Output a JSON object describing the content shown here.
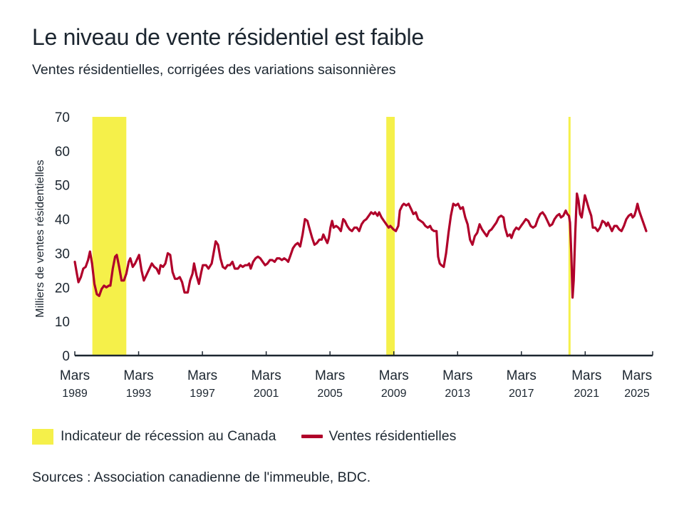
{
  "header": {
    "title": "Le niveau de vente résidentiel est faible",
    "subtitle": "Ventes résidentielles, corrigées des variations saisonnières"
  },
  "legend": {
    "recession_label": "Indicateur de récession au Canada",
    "series_label": "Ventes résidentielles"
  },
  "source": "Sources : Association canadienne de l'immeuble, BDC.",
  "colors": {
    "series": "#b0002a",
    "recession": "#f5f04a",
    "axis": "#1c2630"
  },
  "chart_data": {
    "type": "line",
    "title": "Le niveau de vente résidentiel est faible",
    "subtitle": "Ventes résidentielles, corrigées des variations saisonnières",
    "xlabel": "",
    "ylabel": "Milliers de ventes résidentielles",
    "ylim": [
      0,
      70
    ],
    "yticks": [
      0,
      10,
      20,
      30,
      40,
      50,
      60,
      70
    ],
    "xlim": [
      1989.17,
      2025.4
    ],
    "xticks": [
      {
        "x": 1989.17,
        "line1": "Mars",
        "line2": "1989"
      },
      {
        "x": 1993.17,
        "line1": "Mars",
        "line2": "1993"
      },
      {
        "x": 1997.17,
        "line1": "Mars",
        "line2": "1997"
      },
      {
        "x": 2001.17,
        "line1": "Mars",
        "line2": "2001"
      },
      {
        "x": 2005.17,
        "line1": "Mars",
        "line2": "2005"
      },
      {
        "x": 2009.17,
        "line1": "Mars",
        "line2": "2009"
      },
      {
        "x": 2013.17,
        "line1": "Mars",
        "line2": "2013"
      },
      {
        "x": 2017.17,
        "line1": "Mars",
        "line2": "2017"
      },
      {
        "x": 2021.17,
        "line1": "Mars",
        "line2": "2021"
      },
      {
        "x": 2025.17,
        "line1": "Mars",
        "line2": "2025"
      }
    ],
    "grid": false,
    "legend_position": "bottom-left",
    "recessions": [
      {
        "start": 1990.27,
        "end": 1992.4
      },
      {
        "start": 2008.7,
        "end": 2009.23
      },
      {
        "start": 2020.12,
        "end": 2020.25
      }
    ],
    "series": [
      {
        "name": "Ventes résidentielles",
        "points": [
          [
            1989.17,
            27.5
          ],
          [
            1989.3,
            24.0
          ],
          [
            1989.4,
            21.5
          ],
          [
            1989.55,
            23.0
          ],
          [
            1989.7,
            25.5
          ],
          [
            1989.85,
            26.0
          ],
          [
            1990.0,
            28.0
          ],
          [
            1990.12,
            30.5
          ],
          [
            1990.25,
            27.0
          ],
          [
            1990.4,
            21.0
          ],
          [
            1990.55,
            18.0
          ],
          [
            1990.7,
            17.5
          ],
          [
            1990.85,
            19.5
          ],
          [
            1991.0,
            20.5
          ],
          [
            1991.15,
            20.0
          ],
          [
            1991.3,
            20.5
          ],
          [
            1991.4,
            20.5
          ],
          [
            1991.55,
            25.5
          ],
          [
            1991.7,
            29.0
          ],
          [
            1991.8,
            29.5
          ],
          [
            1991.95,
            26.0
          ],
          [
            1992.1,
            22.0
          ],
          [
            1992.25,
            22.0
          ],
          [
            1992.4,
            24.0
          ],
          [
            1992.55,
            27.5
          ],
          [
            1992.65,
            28.5
          ],
          [
            1992.8,
            26.0
          ],
          [
            1992.95,
            27.0
          ],
          [
            1993.1,
            28.5
          ],
          [
            1993.2,
            29.5
          ],
          [
            1993.35,
            25.0
          ],
          [
            1993.5,
            22.0
          ],
          [
            1993.65,
            23.5
          ],
          [
            1993.8,
            25.0
          ],
          [
            1994.0,
            27.0
          ],
          [
            1994.15,
            26.0
          ],
          [
            1994.3,
            25.5
          ],
          [
            1994.45,
            24.0
          ],
          [
            1994.55,
            26.5
          ],
          [
            1994.7,
            26.0
          ],
          [
            1994.85,
            27.0
          ],
          [
            1995.0,
            30.0
          ],
          [
            1995.15,
            29.5
          ],
          [
            1995.3,
            24.5
          ],
          [
            1995.45,
            22.5
          ],
          [
            1995.6,
            22.5
          ],
          [
            1995.75,
            23.0
          ],
          [
            1995.9,
            21.5
          ],
          [
            1996.05,
            18.5
          ],
          [
            1996.25,
            18.5
          ],
          [
            1996.4,
            22.0
          ],
          [
            1996.55,
            24.0
          ],
          [
            1996.65,
            27.0
          ],
          [
            1996.8,
            23.5
          ],
          [
            1996.95,
            21.0
          ],
          [
            1997.1,
            24.5
          ],
          [
            1997.2,
            26.5
          ],
          [
            1997.4,
            26.5
          ],
          [
            1997.55,
            25.5
          ],
          [
            1997.75,
            27.0
          ],
          [
            1997.85,
            29.5
          ],
          [
            1998.0,
            33.5
          ],
          [
            1998.15,
            32.5
          ],
          [
            1998.3,
            28.5
          ],
          [
            1998.45,
            26.0
          ],
          [
            1998.6,
            25.5
          ],
          [
            1998.75,
            26.5
          ],
          [
            1998.9,
            26.5
          ],
          [
            1999.05,
            27.5
          ],
          [
            1999.2,
            25.5
          ],
          [
            1999.4,
            25.5
          ],
          [
            1999.55,
            26.5
          ],
          [
            1999.7,
            26.0
          ],
          [
            1999.85,
            26.5
          ],
          [
            2000.0,
            26.5
          ],
          [
            2000.1,
            27.0
          ],
          [
            2000.2,
            25.5
          ],
          [
            2000.35,
            27.5
          ],
          [
            2000.5,
            28.5
          ],
          [
            2000.65,
            29.0
          ],
          [
            2000.8,
            28.5
          ],
          [
            2000.95,
            27.5
          ],
          [
            2001.1,
            26.5
          ],
          [
            2001.25,
            27.0
          ],
          [
            2001.4,
            28.0
          ],
          [
            2001.55,
            28.0
          ],
          [
            2001.7,
            27.5
          ],
          [
            2001.85,
            28.5
          ],
          [
            2002.0,
            28.5
          ],
          [
            2002.15,
            28.0
          ],
          [
            2002.3,
            28.5
          ],
          [
            2002.45,
            28.0
          ],
          [
            2002.55,
            27.5
          ],
          [
            2002.7,
            29.5
          ],
          [
            2002.85,
            31.5
          ],
          [
            2003.0,
            32.5
          ],
          [
            2003.15,
            33.0
          ],
          [
            2003.3,
            32.0
          ],
          [
            2003.45,
            35.5
          ],
          [
            2003.6,
            40.0
          ],
          [
            2003.75,
            39.5
          ],
          [
            2003.9,
            37.0
          ],
          [
            2004.05,
            34.5
          ],
          [
            2004.2,
            32.5
          ],
          [
            2004.35,
            33.0
          ],
          [
            2004.5,
            34.0
          ],
          [
            2004.65,
            34.0
          ],
          [
            2004.75,
            35.5
          ],
          [
            2004.9,
            34.0
          ],
          [
            2005.0,
            33.0
          ],
          [
            2005.1,
            34.5
          ],
          [
            2005.2,
            37.5
          ],
          [
            2005.3,
            39.5
          ],
          [
            2005.4,
            37.5
          ],
          [
            2005.55,
            38.0
          ],
          [
            2005.7,
            37.5
          ],
          [
            2005.85,
            36.5
          ],
          [
            2006.0,
            40.0
          ],
          [
            2006.1,
            39.5
          ],
          [
            2006.25,
            38.0
          ],
          [
            2006.4,
            37.0
          ],
          [
            2006.55,
            36.5
          ],
          [
            2006.7,
            37.5
          ],
          [
            2006.85,
            37.5
          ],
          [
            2007.0,
            36.5
          ],
          [
            2007.15,
            38.5
          ],
          [
            2007.3,
            39.5
          ],
          [
            2007.45,
            40.0
          ],
          [
            2007.6,
            41.0
          ],
          [
            2007.75,
            42.0
          ],
          [
            2007.9,
            41.5
          ],
          [
            2008.0,
            42.0
          ],
          [
            2008.15,
            41.0
          ],
          [
            2008.25,
            42.0
          ],
          [
            2008.4,
            40.5
          ],
          [
            2008.55,
            39.5
          ],
          [
            2008.7,
            38.5
          ],
          [
            2008.85,
            37.5
          ],
          [
            2008.95,
            38.0
          ],
          [
            2009.05,
            37.5
          ],
          [
            2009.15,
            37.0
          ],
          [
            2009.3,
            36.5
          ],
          [
            2009.45,
            38.0
          ],
          [
            2009.55,
            42.5
          ],
          [
            2009.7,
            44.0
          ],
          [
            2009.8,
            44.5
          ],
          [
            2009.95,
            44.0
          ],
          [
            2010.1,
            44.5
          ],
          [
            2010.25,
            43.0
          ],
          [
            2010.4,
            41.5
          ],
          [
            2010.55,
            42.0
          ],
          [
            2010.7,
            40.0
          ],
          [
            2010.85,
            39.5
          ],
          [
            2011.0,
            39.0
          ],
          [
            2011.15,
            38.0
          ],
          [
            2011.3,
            37.5
          ],
          [
            2011.45,
            38.0
          ],
          [
            2011.55,
            37.0
          ],
          [
            2011.7,
            36.5
          ],
          [
            2011.85,
            36.5
          ],
          [
            2011.95,
            29.0
          ],
          [
            2012.05,
            27.0
          ],
          [
            2012.15,
            26.5
          ],
          [
            2012.3,
            26.0
          ],
          [
            2012.45,
            30.0
          ],
          [
            2012.6,
            36.0
          ],
          [
            2012.75,
            41.0
          ],
          [
            2012.9,
            44.5
          ],
          [
            2013.05,
            44.0
          ],
          [
            2013.2,
            44.5
          ],
          [
            2013.35,
            43.0
          ],
          [
            2013.5,
            43.5
          ],
          [
            2013.65,
            40.5
          ],
          [
            2013.8,
            38.5
          ],
          [
            2013.95,
            34.0
          ],
          [
            2014.1,
            32.5
          ],
          [
            2014.25,
            35.0
          ],
          [
            2014.4,
            36.0
          ],
          [
            2014.55,
            38.5
          ],
          [
            2014.7,
            37.0
          ],
          [
            2014.85,
            36.0
          ],
          [
            2015.0,
            35.0
          ],
          [
            2015.15,
            36.5
          ],
          [
            2015.3,
            37.0
          ],
          [
            2015.45,
            38.0
          ],
          [
            2015.6,
            39.0
          ],
          [
            2015.75,
            40.5
          ],
          [
            2015.9,
            41.0
          ],
          [
            2016.05,
            40.5
          ],
          [
            2016.15,
            37.5
          ],
          [
            2016.3,
            35.0
          ],
          [
            2016.45,
            35.5
          ],
          [
            2016.55,
            34.5
          ],
          [
            2016.7,
            36.5
          ],
          [
            2016.85,
            37.5
          ],
          [
            2017.0,
            37.0
          ],
          [
            2017.15,
            38.0
          ],
          [
            2017.3,
            39.0
          ],
          [
            2017.45,
            40.0
          ],
          [
            2017.6,
            39.5
          ],
          [
            2017.75,
            38.0
          ],
          [
            2017.9,
            37.5
          ],
          [
            2018.05,
            38.0
          ],
          [
            2018.2,
            40.0
          ],
          [
            2018.35,
            41.5
          ],
          [
            2018.5,
            42.0
          ],
          [
            2018.65,
            41.0
          ],
          [
            2018.8,
            39.5
          ],
          [
            2018.95,
            38.0
          ],
          [
            2019.1,
            38.5
          ],
          [
            2019.25,
            40.0
          ],
          [
            2019.4,
            41.0
          ],
          [
            2019.55,
            41.5
          ],
          [
            2019.65,
            40.5
          ],
          [
            2019.8,
            41.0
          ],
          [
            2019.95,
            42.5
          ],
          [
            2020.05,
            41.5
          ],
          [
            2020.15,
            41.0
          ],
          [
            2020.22,
            39.0
          ],
          [
            2020.3,
            30.0
          ],
          [
            2020.38,
            17.0
          ],
          [
            2020.45,
            22.0
          ],
          [
            2020.55,
            36.0
          ],
          [
            2020.65,
            47.5
          ],
          [
            2020.75,
            45.5
          ],
          [
            2020.85,
            41.5
          ],
          [
            2020.95,
            40.5
          ],
          [
            2021.05,
            43.5
          ],
          [
            2021.15,
            47.0
          ],
          [
            2021.25,
            45.5
          ],
          [
            2021.4,
            43.0
          ],
          [
            2021.55,
            41.0
          ],
          [
            2021.65,
            37.5
          ],
          [
            2021.8,
            37.5
          ],
          [
            2021.95,
            36.5
          ],
          [
            2022.1,
            37.5
          ],
          [
            2022.25,
            39.5
          ],
          [
            2022.4,
            39.0
          ],
          [
            2022.5,
            38.0
          ],
          [
            2022.6,
            39.0
          ],
          [
            2022.75,
            37.5
          ],
          [
            2022.85,
            36.5
          ],
          [
            2023.0,
            38.0
          ],
          [
            2023.15,
            38.0
          ],
          [
            2023.3,
            37.0
          ],
          [
            2023.45,
            36.5
          ],
          [
            2023.6,
            38.0
          ],
          [
            2023.75,
            40.0
          ],
          [
            2023.9,
            41.0
          ],
          [
            2024.05,
            41.5
          ],
          [
            2024.15,
            40.5
          ],
          [
            2024.25,
            41.0
          ],
          [
            2024.35,
            42.5
          ],
          [
            2024.45,
            44.5
          ],
          [
            2024.55,
            42.5
          ],
          [
            2024.7,
            40.5
          ],
          [
            2024.85,
            38.5
          ],
          [
            2025.0,
            36.5
          ]
        ]
      }
    ]
  }
}
